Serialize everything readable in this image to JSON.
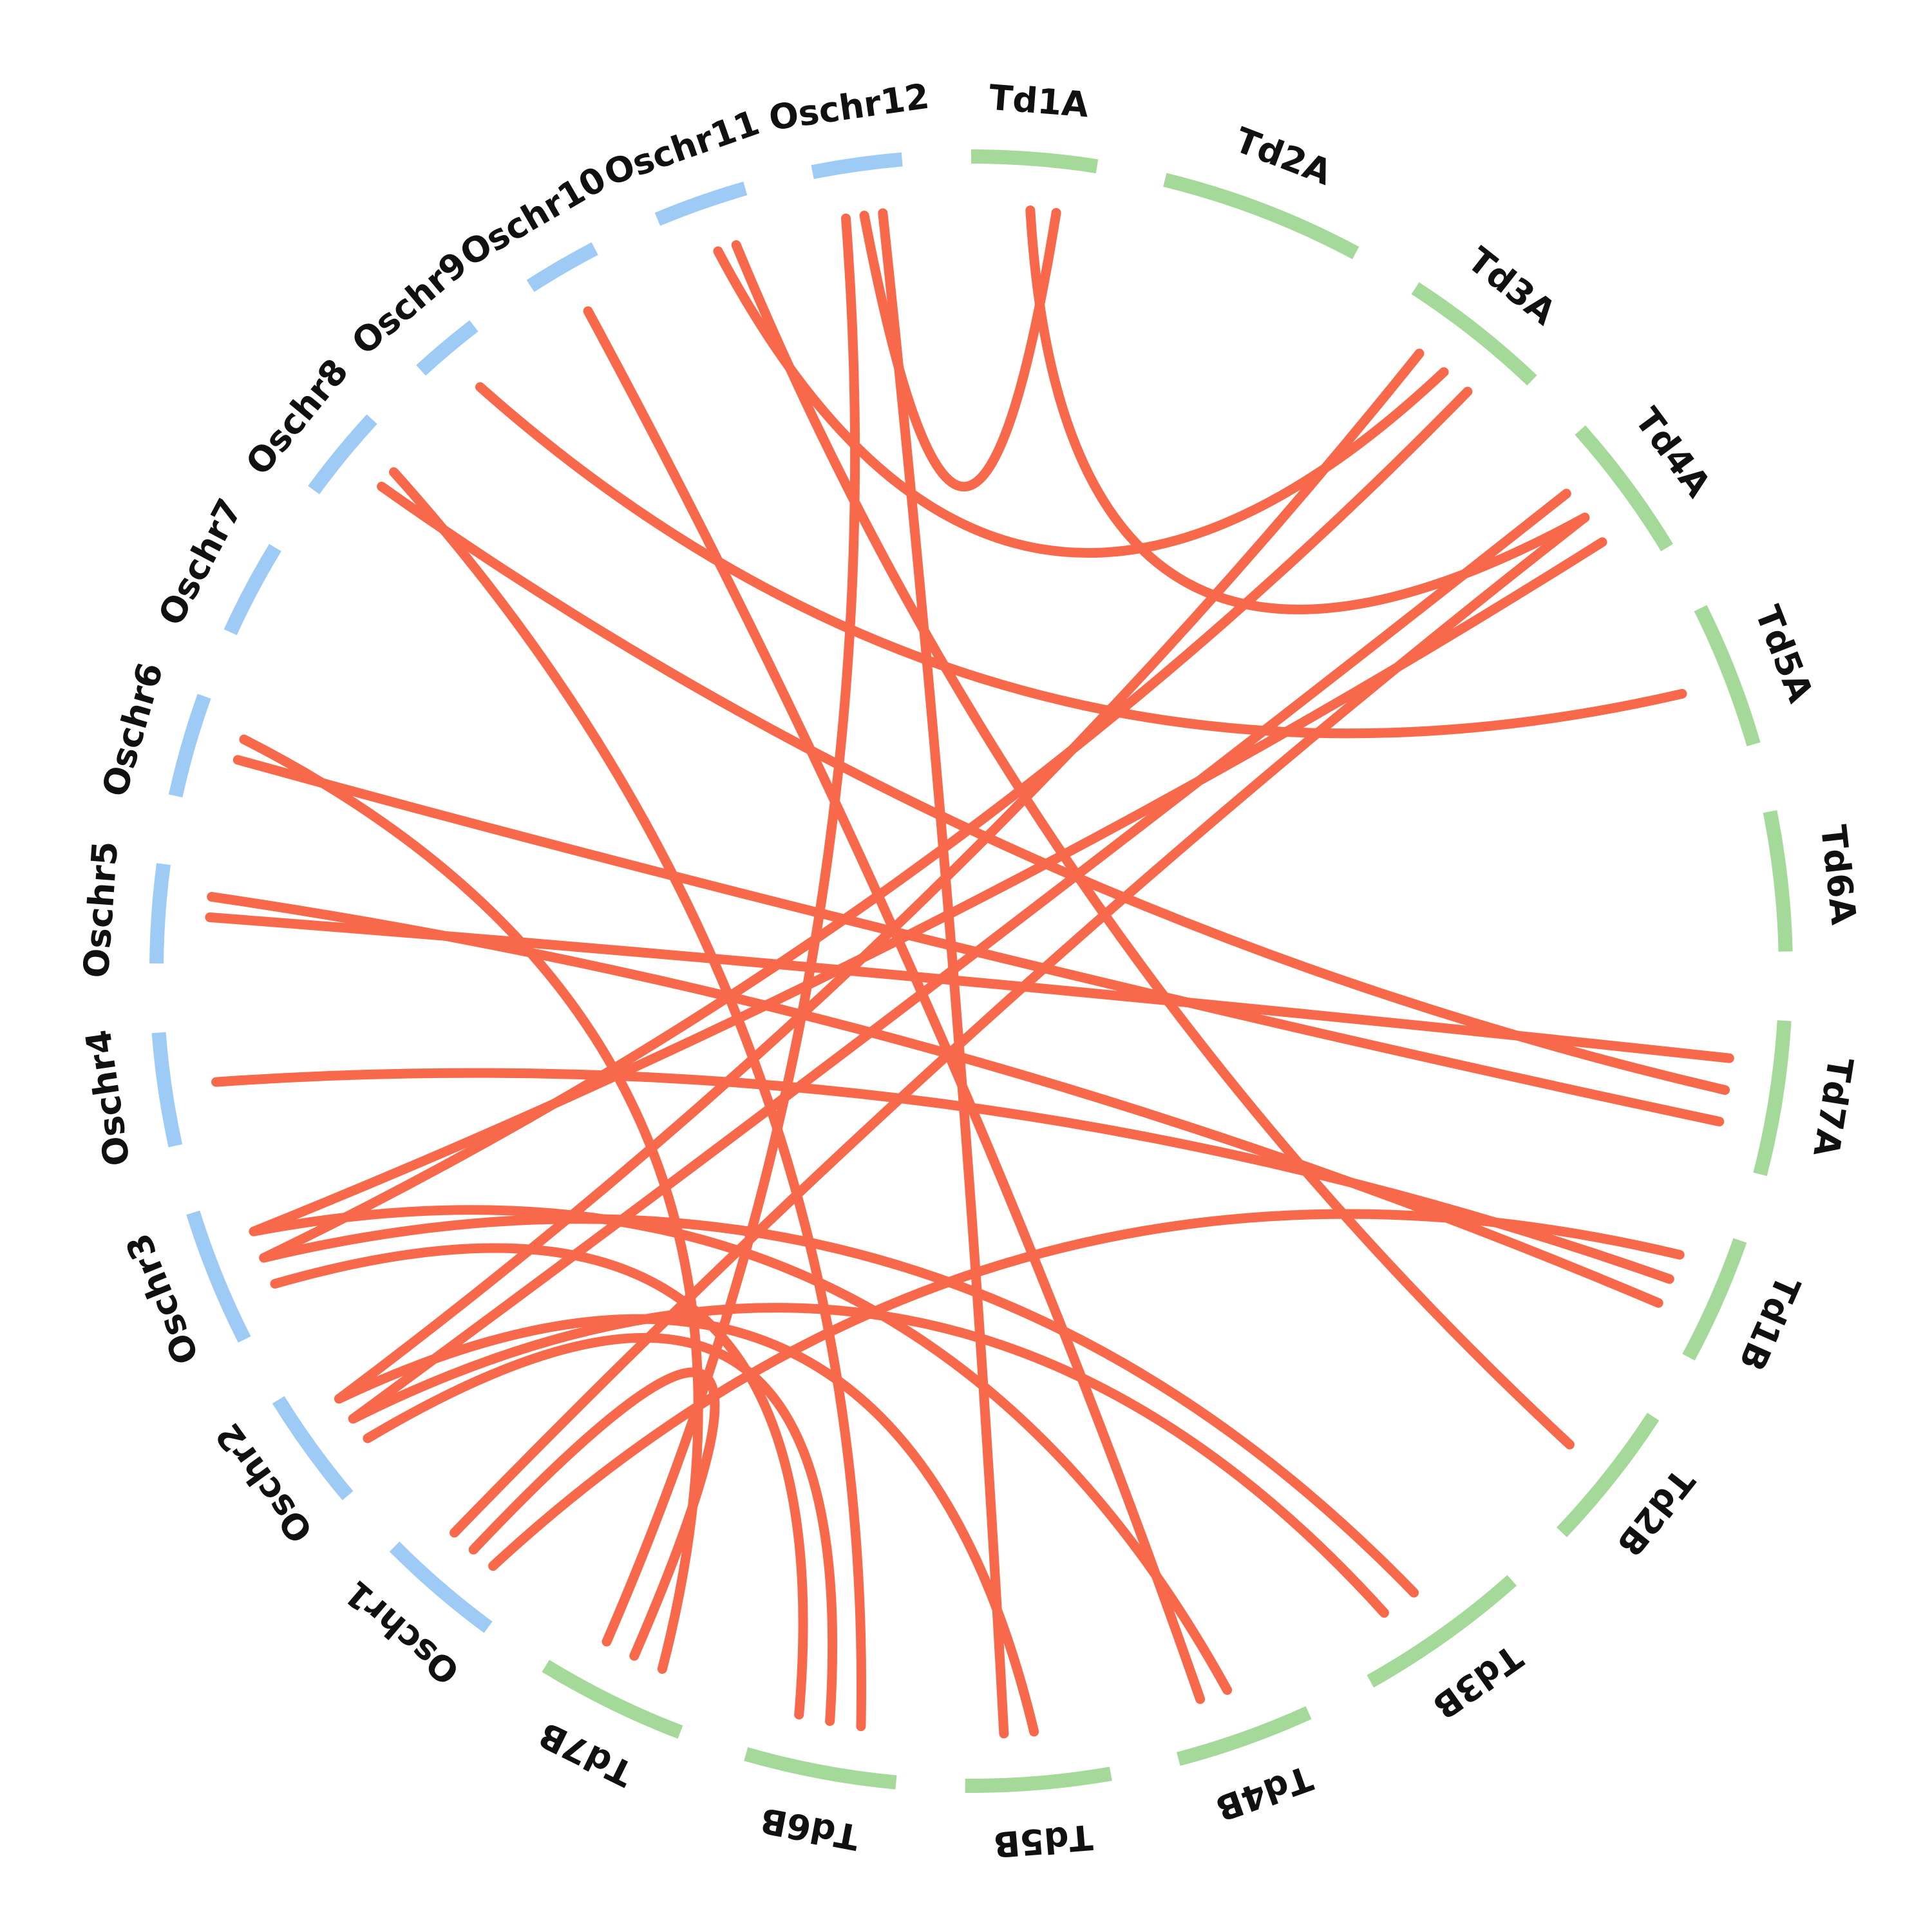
{
  "diagram": {
    "type": "circos-synteny",
    "colors": {
      "rice": "#9ecbf5",
      "wheat": "#a4d99a",
      "link": "#f7694a",
      "label": "#111111"
    },
    "chromosomes": [
      {
        "id": "Td1A",
        "label": "Td1A",
        "group": "wheat"
      },
      {
        "id": "Td2A",
        "label": "Td2A",
        "group": "wheat"
      },
      {
        "id": "Td3A",
        "label": "Td3A",
        "group": "wheat"
      },
      {
        "id": "Td4A",
        "label": "Td4A",
        "group": "wheat"
      },
      {
        "id": "Td5A",
        "label": "Td5A",
        "group": "wheat"
      },
      {
        "id": "Td6A",
        "label": "Td6A",
        "group": "wheat"
      },
      {
        "id": "Td7A",
        "label": "Td7A",
        "group": "wheat"
      },
      {
        "id": "Td1B",
        "label": "Td1B",
        "group": "wheat"
      },
      {
        "id": "Td2B",
        "label": "Td2B",
        "group": "wheat"
      },
      {
        "id": "Td3B",
        "label": "Td3B",
        "group": "wheat"
      },
      {
        "id": "Td4B",
        "label": "Td4B",
        "group": "wheat"
      },
      {
        "id": "Td5B",
        "label": "Td5B",
        "group": "wheat"
      },
      {
        "id": "Td6B",
        "label": "Td6B",
        "group": "wheat"
      },
      {
        "id": "Td7B",
        "label": "Td7B",
        "group": "wheat"
      },
      {
        "id": "Oschr1",
        "label": "Oschr1",
        "group": "rice"
      },
      {
        "id": "Oschr2",
        "label": "Oschr2",
        "group": "rice"
      },
      {
        "id": "Oschr3",
        "label": "Oschr3",
        "group": "rice"
      },
      {
        "id": "Oschr4",
        "label": "Oschr4",
        "group": "rice"
      },
      {
        "id": "Oschr5",
        "label": "Oschr5",
        "group": "rice"
      },
      {
        "id": "Oschr6",
        "label": "Oschr6",
        "group": "rice"
      },
      {
        "id": "Oschr7",
        "label": "Oschr7",
        "group": "rice"
      },
      {
        "id": "Oschr8",
        "label": "Oschr8",
        "group": "rice"
      },
      {
        "id": "Oschr9",
        "label": "Oschr9",
        "group": "rice"
      },
      {
        "id": "Oschr10",
        "label": "Oschr10",
        "group": "rice"
      },
      {
        "id": "Oschr11",
        "label": "Oschr11",
        "group": "rice"
      },
      {
        "id": "Oschr12",
        "label": "Oschr12",
        "group": "rice"
      }
    ],
    "links": [
      {
        "from": "Td1A",
        "to": "Td4A"
      },
      {
        "from": "Td1A",
        "to": "Oschr12"
      },
      {
        "from": "Td3A",
        "to": "Oschr11"
      },
      {
        "from": "Td5A",
        "to": "Oschr9"
      },
      {
        "from": "Td7A",
        "to": "Oschr8"
      },
      {
        "from": "Td7A",
        "to": "Oschr6"
      },
      {
        "from": "Td7A",
        "to": "Oschr5"
      },
      {
        "from": "Td1B",
        "to": "Oschr4"
      },
      {
        "from": "Td1B",
        "to": "Oschr5"
      },
      {
        "from": "Td2B",
        "to": "Oschr11"
      },
      {
        "from": "Td3B",
        "to": "Oschr3"
      },
      {
        "from": "Td3B",
        "to": "Oschr2"
      },
      {
        "from": "Td4B",
        "to": "Oschr3"
      },
      {
        "from": "Td4B",
        "to": "Oschr10"
      },
      {
        "from": "Td5B",
        "to": "Oschr2"
      },
      {
        "from": "Td5B",
        "to": "Oschr12"
      },
      {
        "from": "Td6B",
        "to": "Oschr2"
      },
      {
        "from": "Td6B",
        "to": "Oschr3"
      },
      {
        "from": "Td6B",
        "to": "Oschr8"
      },
      {
        "from": "Td7B",
        "to": "Oschr1"
      },
      {
        "from": "Td7B",
        "to": "Oschr12"
      },
      {
        "from": "Td3A",
        "to": "Oschr3"
      },
      {
        "from": "Td4A",
        "to": "Oschr3"
      },
      {
        "from": "Td4A",
        "to": "Oschr2"
      },
      {
        "from": "Td4A",
        "to": "Oschr1"
      },
      {
        "from": "Td3A",
        "to": "Oschr2"
      },
      {
        "from": "Td7B",
        "to": "Oschr6"
      },
      {
        "from": "Td1B",
        "to": "Oschr1"
      }
    ]
  }
}
